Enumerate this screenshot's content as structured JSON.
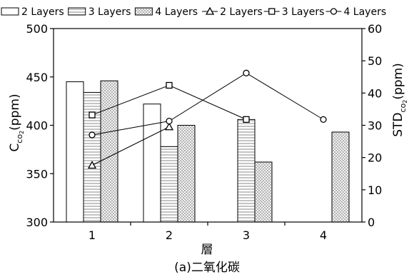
{
  "chart_data": {
    "type": "bar",
    "categories": [
      "1",
      "2",
      "3",
      "4"
    ],
    "xlabel": "層",
    "caption": "(a)二氧化碳",
    "ylabel_left": {
      "main": "C",
      "sub": "co",
      "subsub": "2",
      "tail": "(ppm)"
    },
    "ylabel_right": {
      "main": "STD",
      "sub": "co",
      "subsub": "2",
      "tail": "(ppm)"
    },
    "ylim_left": [
      300,
      500
    ],
    "yticks_left": [
      300,
      350,
      400,
      450,
      500
    ],
    "ylim_right": [
      0,
      60
    ],
    "yticks_right": [
      0,
      10,
      20,
      30,
      40,
      50,
      60
    ],
    "grid": false,
    "legend_position": "top",
    "bar_series": [
      {
        "name": "2 Layers",
        "pattern": "plain",
        "values": [
          445,
          422,
          null,
          null
        ]
      },
      {
        "name": "3 Layers",
        "pattern": "stripes",
        "values": [
          434,
          378,
          406,
          null
        ]
      },
      {
        "name": "4 Layers",
        "pattern": "dots",
        "values": [
          446,
          400,
          362,
          393
        ]
      }
    ],
    "line_series": [
      {
        "name": "2 Layers",
        "marker": "triangle",
        "values": [
          17.6,
          29.5,
          null,
          null
        ]
      },
      {
        "name": "3 Layers",
        "marker": "square",
        "values": [
          33.2,
          42.4,
          31.8,
          null
        ]
      },
      {
        "name": "4 Layers",
        "marker": "circle",
        "values": [
          27.0,
          31.3,
          46.2,
          31.8
        ]
      }
    ]
  }
}
